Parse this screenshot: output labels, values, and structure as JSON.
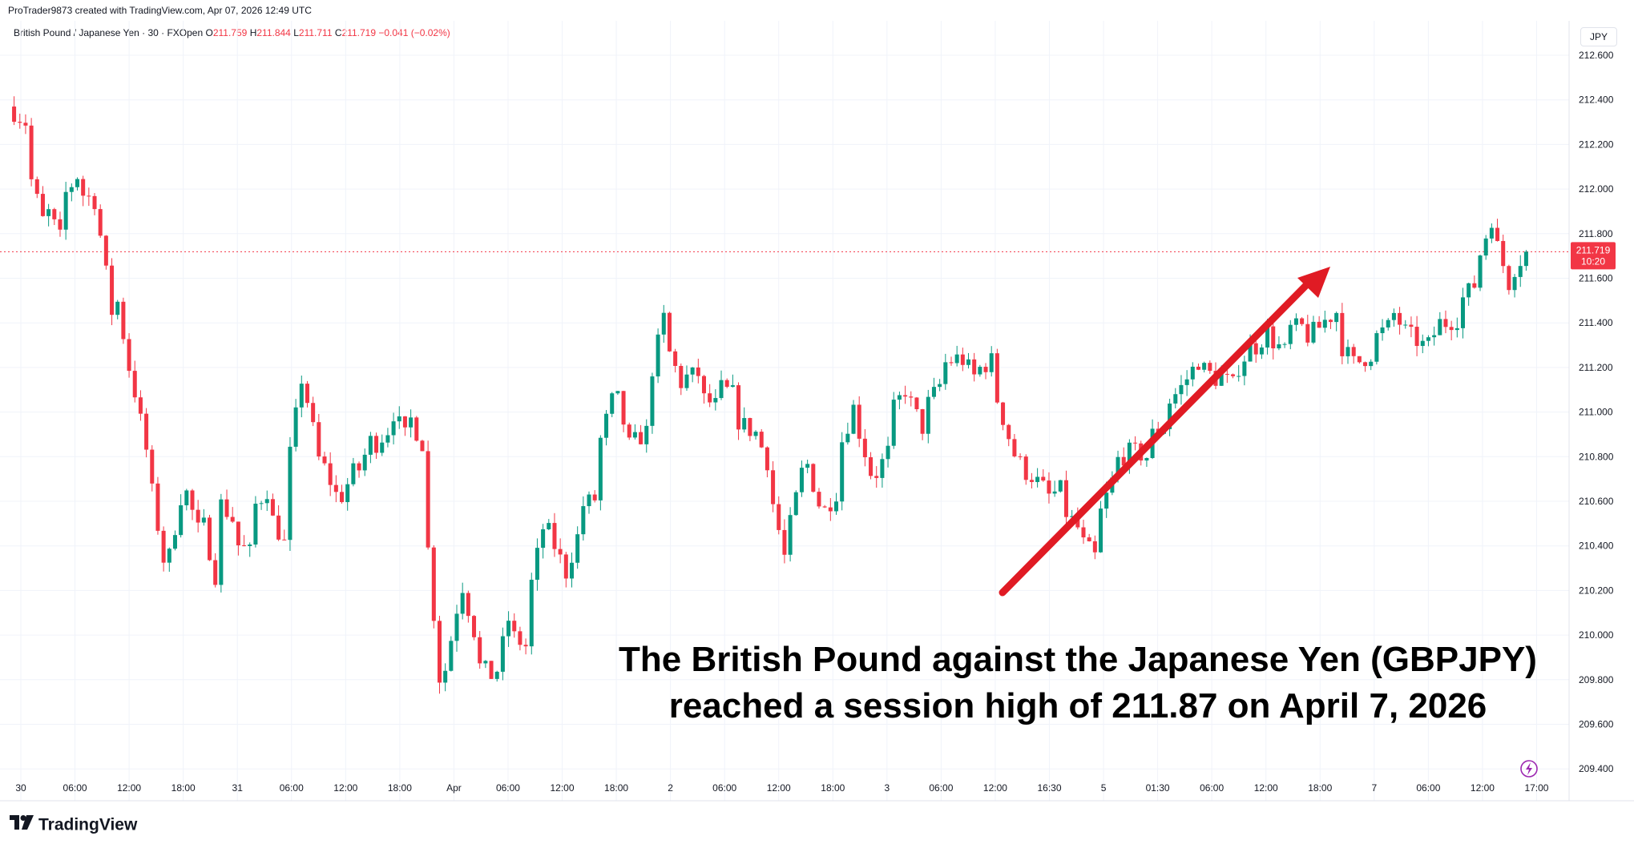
{
  "header": {
    "credit": "ProTrader9873 created with TradingView.com, Apr 07, 2026 12:49 UTC"
  },
  "legend": {
    "symbol": "British Pound / Japanese Yen · 30 · FXOpen",
    "o_label": "O",
    "o_value": "211.759",
    "h_label": "H",
    "h_value": "211.844",
    "l_label": "L",
    "l_value": "211.711",
    "c_label": "C",
    "c_value": "211.719",
    "change": "−0.041 (−0.02%)"
  },
  "currency_button": "JPY",
  "last_price_label": {
    "price": "211.719",
    "countdown": "10:20"
  },
  "annotation": {
    "line1": "The British Pound against the Japanese Yen (GBPJPY)",
    "line2": "reached a session high of 211.87 on April 7, 2026"
  },
  "footer": {
    "brand": "TradingView"
  },
  "colors": {
    "up": "#089981",
    "down": "#f23645",
    "arrow": "#e01b24",
    "last_price_line": "#f23645"
  },
  "icons": {
    "footer_logo": "tradingview-logo-icon",
    "flash": "lightning-icon"
  },
  "chart_data": {
    "type": "candlestick",
    "interval": "30",
    "y_axis": {
      "ticks": [
        "212.600",
        "212.400",
        "212.200",
        "212.000",
        "211.800",
        "211.600",
        "211.400",
        "211.200",
        "211.000",
        "210.800",
        "210.600",
        "210.400",
        "210.200",
        "210.000",
        "209.800",
        "209.600",
        "209.400"
      ],
      "range": [
        209.35,
        212.7
      ]
    },
    "x_axis": {
      "ticks": [
        "30",
        "06:00",
        "12:00",
        "18:00",
        "31",
        "06:00",
        "12:00",
        "18:00",
        "Apr",
        "06:00",
        "12:00",
        "18:00",
        "2",
        "06:00",
        "12:00",
        "18:00",
        "3",
        "06:00",
        "12:00",
        "16:30",
        "5",
        "01:30",
        "06:00",
        "12:00",
        "18:00",
        "7",
        "06:00",
        "12:00",
        "17:00"
      ]
    },
    "last_price": 211.719,
    "session_high": 211.87,
    "path": [
      [
        212.37,
        212.3
      ],
      [
        212.13,
        211.86
      ],
      [
        211.95,
        211.78
      ],
      [
        211.94,
        212.06
      ],
      [
        211.99,
        211.95
      ],
      [
        211.96,
        211.45
      ],
      [
        211.64,
        211.2
      ],
      [
        211.22,
        210.83
      ],
      [
        210.79,
        210.34
      ],
      [
        210.22,
        210.62
      ],
      [
        210.72,
        210.47
      ],
      [
        210.6,
        210.27
      ],
      [
        210.62,
        210.52
      ],
      [
        210.42,
        210.37
      ],
      [
        210.55,
        210.65
      ],
      [
        210.57,
        210.41
      ],
      [
        210.64,
        211.15
      ],
      [
        211.18,
        210.79
      ],
      [
        210.81,
        210.63
      ],
      [
        210.57,
        210.73
      ],
      [
        210.68,
        210.87
      ],
      [
        210.83,
        210.92
      ],
      [
        211.05,
        210.89
      ],
      [
        211.02,
        210.86
      ],
      [
        210.67,
        209.81
      ],
      [
        209.71,
        210.12
      ],
      [
        210.32,
        210.02
      ],
      [
        209.88,
        209.82
      ],
      [
        209.73,
        210.07
      ],
      [
        210.01,
        209.95
      ],
      [
        210.11,
        210.48
      ],
      [
        210.52,
        210.34
      ],
      [
        210.2,
        210.44
      ],
      [
        210.57,
        210.61
      ],
      [
        210.79,
        211.05
      ],
      [
        211.16,
        210.85
      ],
      [
        210.85,
        210.91
      ],
      [
        211.08,
        211.42
      ],
      [
        211.33,
        211.13
      ],
      [
        211.15,
        211.17
      ],
      [
        211.07,
        211.03
      ],
      [
        211.12,
        211.08
      ],
      [
        210.98,
        210.92
      ],
      [
        210.97,
        210.78
      ],
      [
        210.71,
        210.35
      ],
      [
        210.38,
        210.73
      ],
      [
        210.85,
        210.59
      ],
      [
        210.52,
        210.64
      ],
      [
        210.8,
        211.02
      ],
      [
        211.0,
        210.73
      ],
      [
        210.68,
        210.82
      ],
      [
        210.97,
        211.1
      ],
      [
        211.09,
        210.93
      ],
      [
        211.0,
        211.12
      ],
      [
        211.21,
        211.24
      ],
      [
        211.27,
        211.16
      ],
      [
        211.18,
        211.23
      ],
      [
        211.14,
        210.89
      ],
      [
        210.85,
        210.73
      ],
      [
        210.74,
        210.66
      ],
      [
        210.61,
        210.65
      ],
      [
        210.58,
        210.48
      ],
      [
        210.44,
        210.35
      ],
      [
        210.48,
        210.69
      ],
      [
        210.77,
        210.82
      ],
      [
        210.83,
        210.8
      ],
      [
        210.88,
        210.94
      ],
      [
        211.02,
        211.11
      ],
      [
        211.11,
        211.23
      ],
      [
        211.21,
        211.15
      ],
      [
        211.18,
        211.12
      ],
      [
        211.16,
        211.29
      ],
      [
        211.26,
        211.36
      ],
      [
        211.34,
        211.27
      ],
      [
        211.37,
        211.38
      ],
      [
        211.32,
        211.38
      ],
      [
        211.39,
        211.45
      ],
      [
        211.33,
        211.22
      ],
      [
        211.21,
        211.26
      ],
      [
        211.32,
        211.38
      ],
      [
        211.48,
        211.36
      ],
      [
        211.36,
        211.3
      ],
      [
        211.25,
        211.4
      ],
      [
        211.39,
        211.42
      ],
      [
        211.48,
        211.57
      ],
      [
        211.63,
        211.87
      ],
      [
        211.82,
        211.58
      ],
      [
        211.61,
        211.72
      ]
    ]
  }
}
